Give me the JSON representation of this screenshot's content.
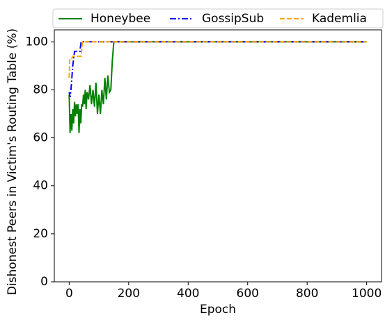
{
  "chart_data": {
    "type": "line",
    "xlabel": "Epoch",
    "ylabel": "Dishonest Peers in Victim's Routing Table (%)",
    "xlim": [
      -50,
      1050
    ],
    "xticks": [
      0,
      200,
      400,
      600,
      800,
      1000
    ],
    "ylim": [
      0,
      105
    ],
    "yticks": [
      0,
      20,
      40,
      60,
      80,
      100
    ],
    "legend": "top-outside",
    "series": [
      {
        "name": "Honeybee",
        "color": "#008000",
        "linestyle": "solid",
        "x": [
          0,
          3,
          6,
          9,
          12,
          15,
          18,
          21,
          24,
          27,
          30,
          33,
          36,
          39,
          42,
          45,
          48,
          51,
          54,
          57,
          60,
          65,
          70,
          75,
          80,
          85,
          90,
          95,
          100,
          105,
          110,
          115,
          120,
          125,
          130,
          135,
          140,
          145,
          150,
          1000
        ],
        "values": [
          78,
          62,
          70,
          63,
          72,
          66,
          75,
          69,
          74,
          70,
          74,
          62,
          72,
          66,
          74,
          73,
          78,
          74,
          80,
          72,
          79,
          76,
          82,
          74,
          80,
          73,
          83,
          70,
          78,
          70,
          80,
          74,
          85,
          76,
          86,
          79,
          80,
          92,
          100,
          100
        ]
      },
      {
        "name": "GossipSub",
        "color": "#0000ff",
        "linestyle": "dashdot",
        "x": [
          0,
          3,
          6,
          9,
          12,
          15,
          18,
          21,
          24,
          27,
          30,
          33,
          36,
          40,
          1000
        ],
        "values": [
          79,
          77,
          80,
          85,
          90,
          93,
          96,
          96,
          96,
          96,
          96,
          96,
          96,
          100,
          100
        ]
      },
      {
        "name": "Kademlia",
        "color": "#ffa500",
        "linestyle": "dashed",
        "x": [
          0,
          2,
          4,
          8,
          12,
          16,
          20,
          25,
          30,
          35,
          40,
          45,
          1000
        ],
        "values": [
          85,
          93,
          93,
          93,
          94,
          94,
          94,
          94,
          94,
          94,
          94,
          100,
          100
        ]
      }
    ]
  }
}
